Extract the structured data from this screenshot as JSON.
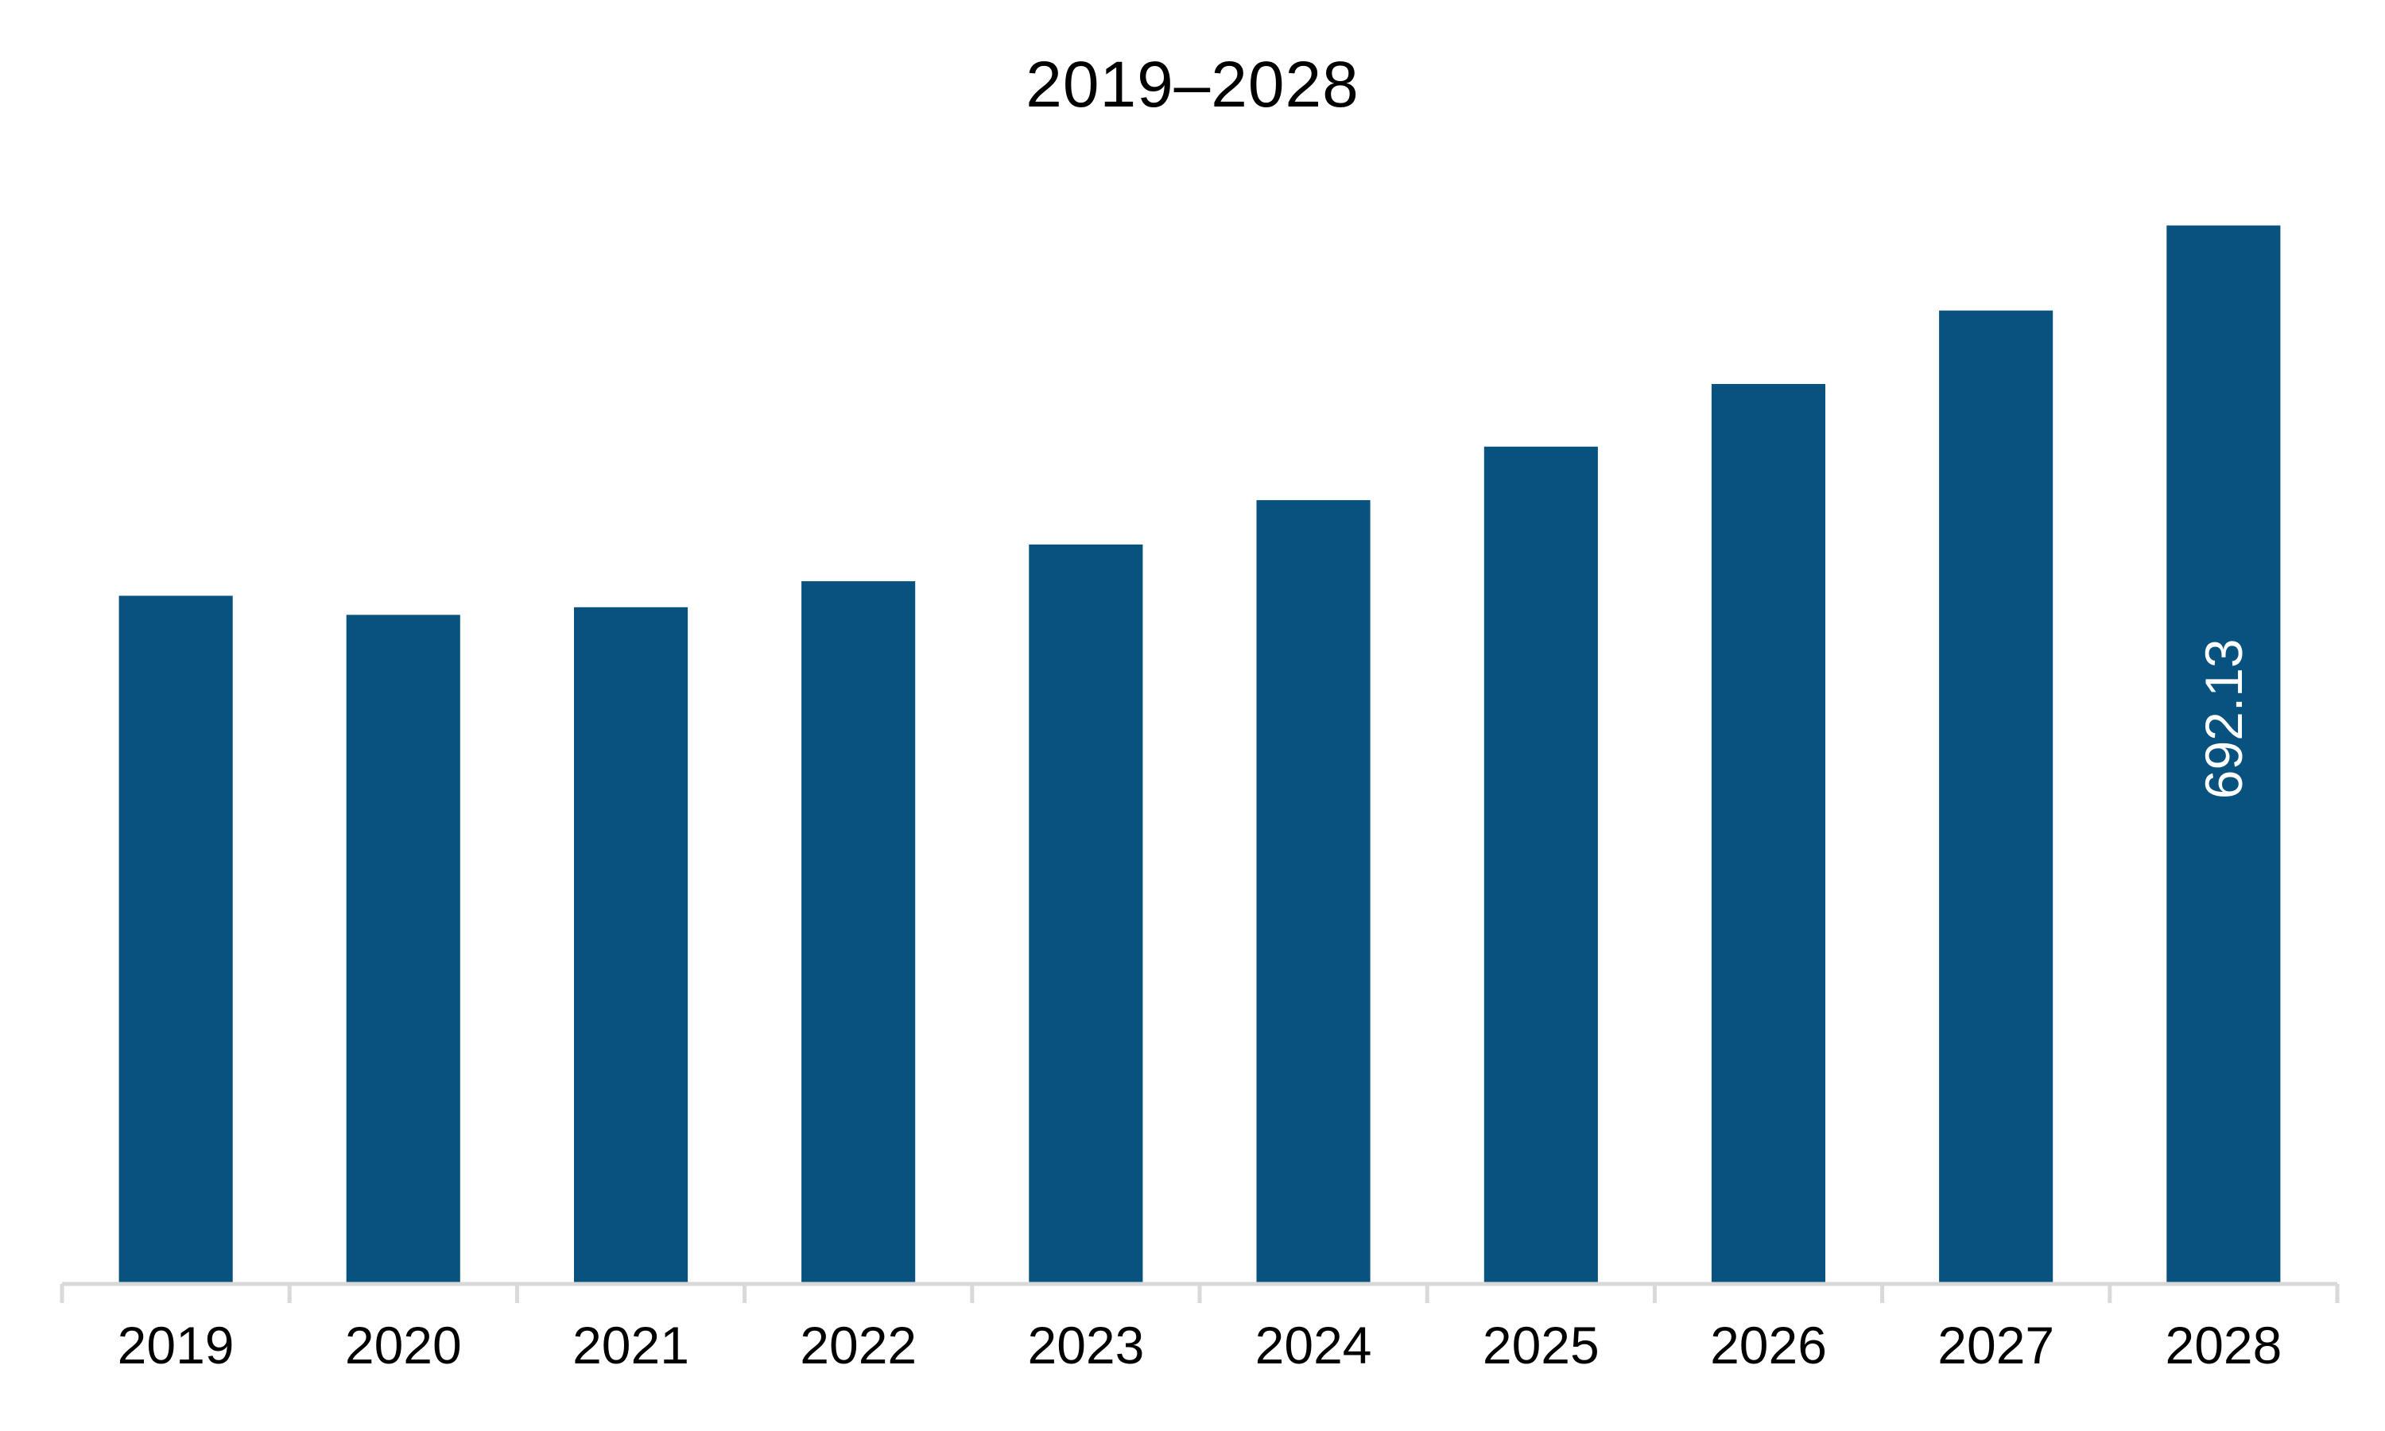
{
  "chart_data": {
    "type": "bar",
    "title": "2019–2028",
    "categories": [
      "2019",
      "2020",
      "2021",
      "2022",
      "2023",
      "2024",
      "2025",
      "2026",
      "2027",
      "2028"
    ],
    "values": [
      450.0,
      437.5,
      442.5,
      459.5,
      483.5,
      512.5,
      547.5,
      588.5,
      636.5,
      692.13
    ],
    "data_labels": [
      "",
      "",
      "",
      "",
      "",
      "",
      "",
      "",
      "",
      "692.13"
    ],
    "ylim": [
      0,
      720
    ],
    "xlabel": "",
    "ylabel": "",
    "grid": false,
    "legend": "none",
    "bar_color": "#08527f",
    "axis_color": "#d9d9d9",
    "label_color_inside": "#ffffff",
    "text_color": "#000000"
  }
}
